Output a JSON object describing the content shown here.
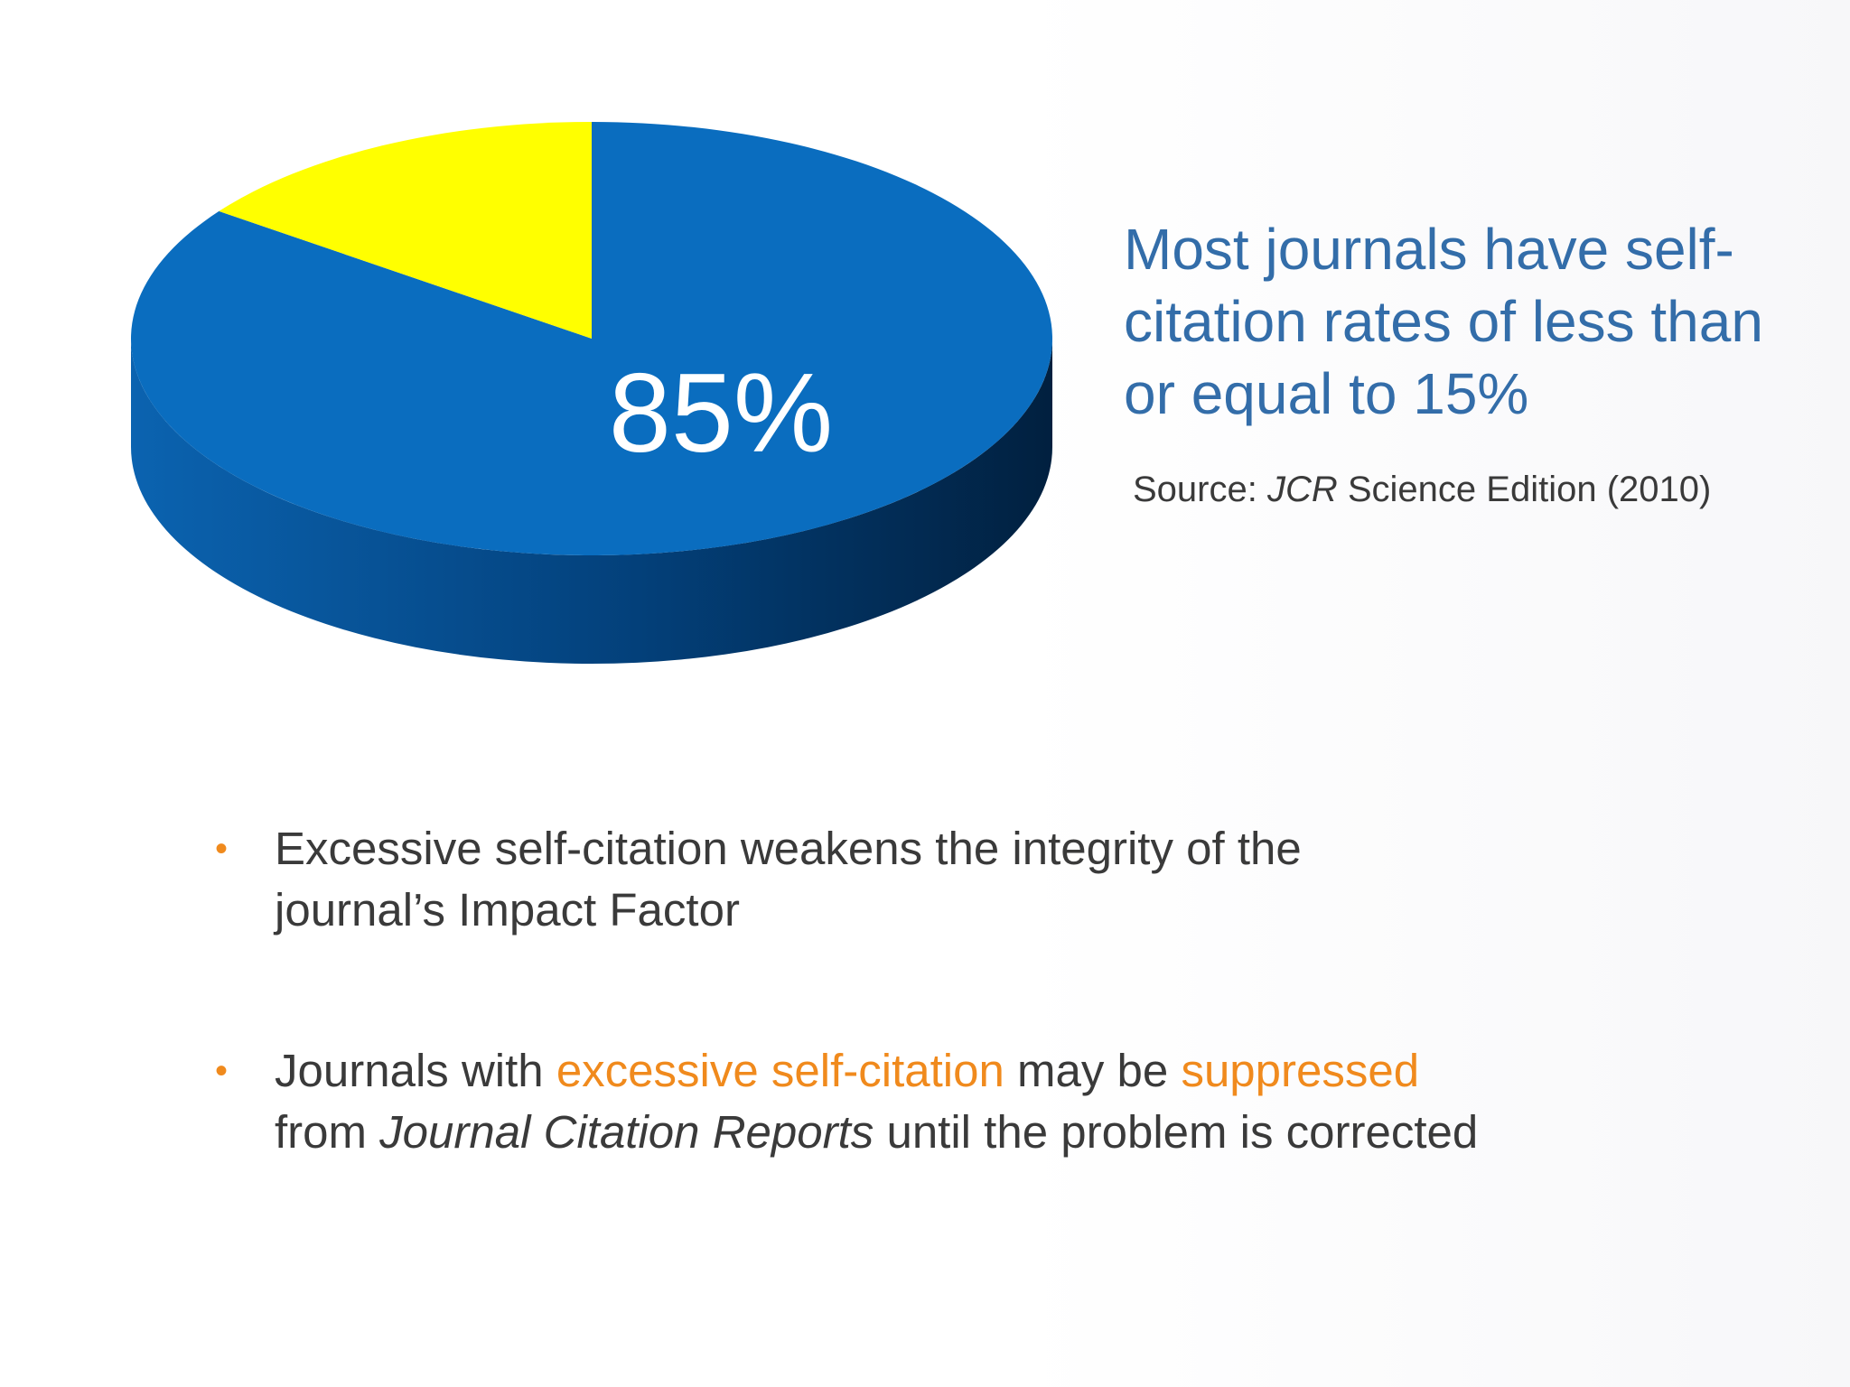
{
  "chart_data": {
    "type": "pie",
    "style": "3d",
    "slices": [
      {
        "value": 85,
        "color": "#0a6dbf",
        "label": "85%"
      },
      {
        "value": 15,
        "color": "#ffff00",
        "label": ""
      }
    ]
  },
  "headline": "Most journals have self-citation rates of less than or equal to 15%",
  "source": {
    "prefix": "Source: ",
    "italic": "JCR",
    "suffix": " Science Edition (2010)"
  },
  "bullets": [
    {
      "marker": "•",
      "parts": [
        {
          "text": "Excessive self-citation weakens the integrity of the journal’s Impact Factor",
          "style": "normal"
        }
      ]
    },
    {
      "marker": "•",
      "parts": [
        {
          "text": "Journals with ",
          "style": "normal"
        },
        {
          "text": "excessive self-citation",
          "style": "highlight"
        },
        {
          "text": " may be ",
          "style": "normal"
        },
        {
          "text": "suppressed",
          "style": "highlight"
        },
        {
          "text": " from ",
          "style": "normal"
        },
        {
          "text": "Journal Citation Reports",
          "style": "italic"
        },
        {
          "text": " until the problem is corrected",
          "style": "normal"
        }
      ]
    }
  ],
  "colors": {
    "accent": "#f08a1d",
    "headline": "#336da9",
    "body": "#3a3a3a"
  }
}
